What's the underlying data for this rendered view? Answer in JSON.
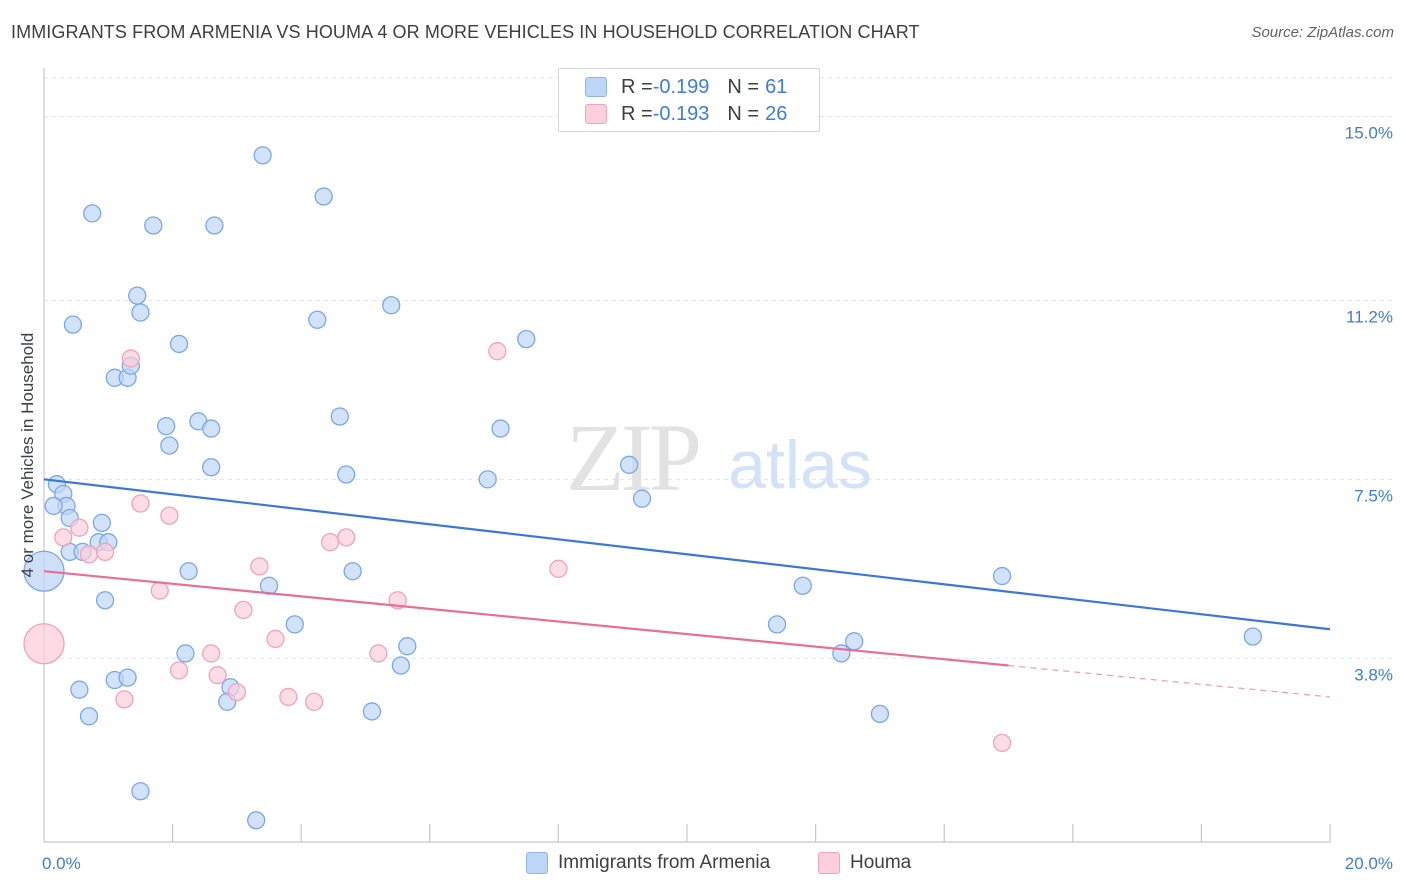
{
  "header": {
    "title": "IMMIGRANTS FROM ARMENIA VS HOUMA 4 OR MORE VEHICLES IN HOUSEHOLD CORRELATION CHART",
    "source": "Source: ZipAtlas.com"
  },
  "watermark": {
    "zip": "ZIP",
    "atlas": "atlas"
  },
  "legend_top": [
    {
      "r_label": "R = ",
      "r_value": "-0.199",
      "n_label": "N = ",
      "n_value": "61"
    },
    {
      "r_label": "R = ",
      "r_value": "-0.193",
      "n_label": "N = ",
      "n_value": "26"
    }
  ],
  "legend_bottom": [
    {
      "label": "Immigrants from Armenia"
    },
    {
      "label": "Houma"
    }
  ],
  "colors": {
    "blue_fill": "#bdd5f6",
    "blue_stroke": "#7aa8e6",
    "blue_line": "#3a78d4",
    "pink_fill": "#fbcfdc",
    "pink_stroke": "#f0a3bb",
    "pink_line": "#e86d97",
    "tick_label": "#3c7dd9",
    "grid": "#dfe3e8"
  },
  "chart_data": {
    "type": "scatter",
    "title": "IMMIGRANTS FROM ARMENIA VS HOUMA 4 OR MORE VEHICLES IN HOUSEHOLD CORRELATION CHART",
    "xlabel": "",
    "ylabel": "4 or more Vehicles in Household",
    "xlim": [
      0,
      20
    ],
    "ylim": [
      0,
      15.8
    ],
    "x_tick_labels": [
      {
        "v": 0,
        "label": "0.0%"
      },
      {
        "v": 20,
        "label": "20.0%"
      }
    ],
    "x_minor_ticks": [
      2,
      4,
      6,
      8,
      10,
      12,
      14,
      16,
      18,
      20
    ],
    "y_ticks": [
      {
        "v": 3.8,
        "label": "3.8%"
      },
      {
        "v": 7.5,
        "label": "7.5%"
      },
      {
        "v": 11.2,
        "label": "11.2%"
      },
      {
        "v": 15.0,
        "label": "15.0%"
      }
    ],
    "series": [
      {
        "name": "Immigrants from Armenia",
        "color": "blue",
        "trend": {
          "x0": 0,
          "y0": 7.5,
          "x1": 20,
          "y1": 4.4
        },
        "points": [
          [
            0.2,
            7.4
          ],
          [
            0.3,
            7.2
          ],
          [
            0.35,
            6.95
          ],
          [
            0.15,
            6.95
          ],
          [
            0.4,
            6.7
          ],
          [
            0.0,
            5.6,
            "large"
          ],
          [
            0.4,
            6.0
          ],
          [
            0.6,
            6.0
          ],
          [
            0.9,
            6.6
          ],
          [
            0.85,
            6.2
          ],
          [
            1.0,
            6.2
          ],
          [
            0.95,
            5.0
          ],
          [
            1.1,
            3.35
          ],
          [
            1.3,
            3.4
          ],
          [
            0.55,
            3.15
          ],
          [
            0.7,
            2.6
          ],
          [
            1.5,
            1.05
          ],
          [
            0.75,
            13.0
          ],
          [
            1.7,
            12.75
          ],
          [
            2.65,
            12.75
          ],
          [
            3.4,
            14.2
          ],
          [
            4.35,
            13.35
          ],
          [
            1.45,
            11.3
          ],
          [
            1.5,
            10.95
          ],
          [
            0.45,
            10.7
          ],
          [
            1.1,
            9.6
          ],
          [
            1.3,
            9.6
          ],
          [
            1.35,
            9.85
          ],
          [
            2.1,
            10.3
          ],
          [
            1.9,
            8.6
          ],
          [
            2.4,
            8.7
          ],
          [
            2.6,
            8.55
          ],
          [
            1.95,
            8.2
          ],
          [
            2.6,
            7.75
          ],
          [
            4.25,
            10.8
          ],
          [
            5.4,
            11.1
          ],
          [
            4.6,
            8.8
          ],
          [
            4.7,
            7.6
          ],
          [
            7.1,
            8.55
          ],
          [
            6.9,
            7.5
          ],
          [
            7.5,
            10.4
          ],
          [
            9.3,
            7.1
          ],
          [
            2.25,
            5.6
          ],
          [
            3.5,
            5.3
          ],
          [
            4.8,
            5.6
          ],
          [
            3.9,
            4.5
          ],
          [
            2.2,
            3.9
          ],
          [
            2.9,
            3.2
          ],
          [
            2.85,
            2.9
          ],
          [
            3.3,
            0.45
          ],
          [
            5.55,
            3.65
          ],
          [
            5.65,
            4.05
          ],
          [
            5.1,
            2.7
          ],
          [
            13.0,
            2.65
          ],
          [
            11.8,
            5.3
          ],
          [
            11.4,
            4.5
          ],
          [
            12.4,
            3.9
          ],
          [
            12.6,
            4.15
          ],
          [
            14.9,
            5.5
          ],
          [
            18.8,
            4.25
          ],
          [
            9.1,
            7.8
          ]
        ]
      },
      {
        "name": "Houma",
        "color": "pink",
        "trend": {
          "x0": 0,
          "y0": 5.6,
          "x1": 15.0,
          "y1": 3.65,
          "dash_x1": 20,
          "dash_y1": 3.0
        },
        "points": [
          [
            0.0,
            4.1,
            "large"
          ],
          [
            0.3,
            6.3
          ],
          [
            0.55,
            6.5
          ],
          [
            0.7,
            5.95
          ],
          [
            0.95,
            6.0
          ],
          [
            1.5,
            7.0
          ],
          [
            1.95,
            6.75
          ],
          [
            1.35,
            10.0
          ],
          [
            7.05,
            10.15
          ],
          [
            1.25,
            2.95
          ],
          [
            1.8,
            5.2
          ],
          [
            2.1,
            3.55
          ],
          [
            2.6,
            3.9
          ],
          [
            2.7,
            3.45
          ],
          [
            3.0,
            3.1
          ],
          [
            3.1,
            4.8
          ],
          [
            3.35,
            5.7
          ],
          [
            3.6,
            4.2
          ],
          [
            3.8,
            3.0
          ],
          [
            4.2,
            2.9
          ],
          [
            4.45,
            6.2
          ],
          [
            4.7,
            6.3
          ],
          [
            5.2,
            3.9
          ],
          [
            5.5,
            5.0
          ],
          [
            8.0,
            5.65
          ],
          [
            14.9,
            2.05
          ]
        ]
      }
    ]
  }
}
